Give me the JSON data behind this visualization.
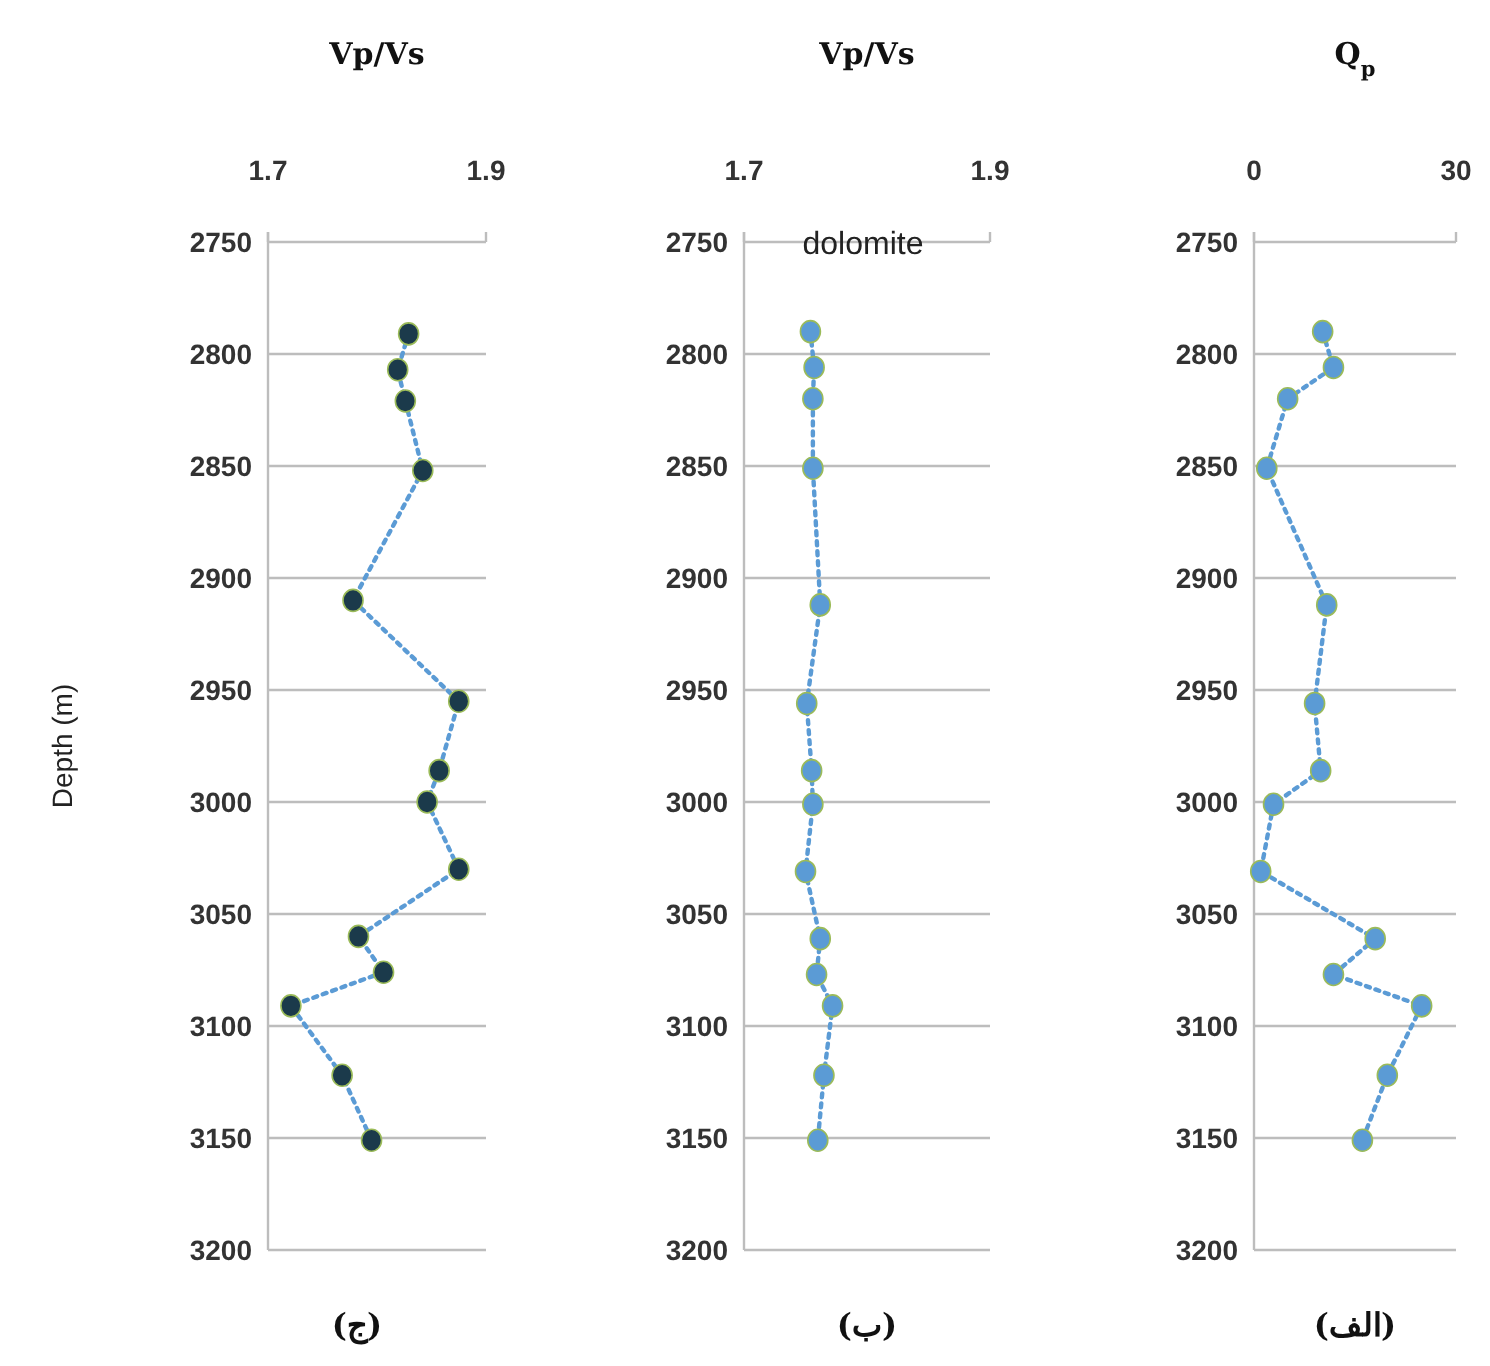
{
  "chart_data": [
    {
      "type": "line",
      "title": "Vp/Vs",
      "ylabel": "Depth (m)",
      "xlim": [
        1.7,
        1.9
      ],
      "xticks": [
        1.7,
        1.9
      ],
      "ylim": [
        3200,
        2750
      ],
      "yticks": [
        2750,
        2800,
        2850,
        2900,
        2950,
        3000,
        3050,
        3100,
        3150,
        3200
      ],
      "grid": "y",
      "marker": "circle",
      "line_style": "dotted",
      "annotations": [
        "(ج)"
      ],
      "series": [
        {
          "color": "#5b9bd5",
          "colors": [
            "#1b3a4b",
            "#1b3a4b",
            "#1b3a4b",
            "#1b3a4b",
            "#1b3a4b",
            "#1b3a4b",
            "#1b3a4b",
            "#1b3a4b",
            "#1b3a4b",
            "#1b3a4b",
            "#1b3a4b",
            "#1b3a4b",
            "#1b3a4b",
            "#1b3a4b"
          ],
          "x": [
            1.829,
            1.819,
            1.826,
            1.842,
            1.778,
            1.875,
            1.857,
            1.846,
            1.875,
            1.783,
            1.806,
            1.721,
            1.768,
            1.795
          ],
          "values": [
            2791,
            2807,
            2821,
            2852,
            2910,
            2955,
            2986,
            3000,
            3030,
            3060,
            3076,
            3091,
            3122,
            3151
          ]
        }
      ]
    },
    {
      "type": "line",
      "title": "Vp/Vs",
      "xlim": [
        1.7,
        1.9
      ],
      "xticks": [
        1.7,
        1.9
      ],
      "ylim": [
        3200,
        2750
      ],
      "yticks": [
        2750,
        2800,
        2850,
        2900,
        2950,
        3000,
        3050,
        3100,
        3150,
        3200
      ],
      "grid": "y",
      "marker": "circle",
      "line_style": "dotted",
      "annotations": [
        "dolomite",
        "(ب)"
      ],
      "series": [
        {
          "color": "#5b9bd5",
          "x": [
            1.754,
            1.757,
            1.756,
            1.756,
            1.762,
            1.751,
            1.755,
            1.756,
            1.75,
            1.762,
            1.759,
            1.772,
            1.765,
            1.76
          ],
          "values": [
            2790,
            2806,
            2820,
            2851,
            2912,
            2956,
            2986,
            3001,
            3031,
            3061,
            3077,
            3091,
            3122,
            3151
          ]
        }
      ]
    },
    {
      "type": "line",
      "title": "Q$_{p}$",
      "xlim": [
        0,
        30
      ],
      "xticks": [
        0,
        30
      ],
      "ylim": [
        3200,
        2750
      ],
      "yticks": [
        2750,
        2800,
        2850,
        2900,
        2950,
        3000,
        3050,
        3100,
        3150,
        3200
      ],
      "grid": "y",
      "marker": "circle",
      "line_style": "dotted",
      "annotations": [
        "(الف)"
      ],
      "series": [
        {
          "color": "#5b9bd5",
          "x": [
            10.2,
            11.8,
            5.0,
            1.9,
            10.8,
            9.0,
            9.9,
            2.9,
            1.0,
            18.0,
            11.8,
            24.9,
            19.8,
            16.1
          ],
          "values": [
            2790,
            2806,
            2820,
            2851,
            2912,
            2956,
            2986,
            3001,
            3031,
            3061,
            3077,
            3091,
            3122,
            3151
          ]
        }
      ]
    }
  ]
}
